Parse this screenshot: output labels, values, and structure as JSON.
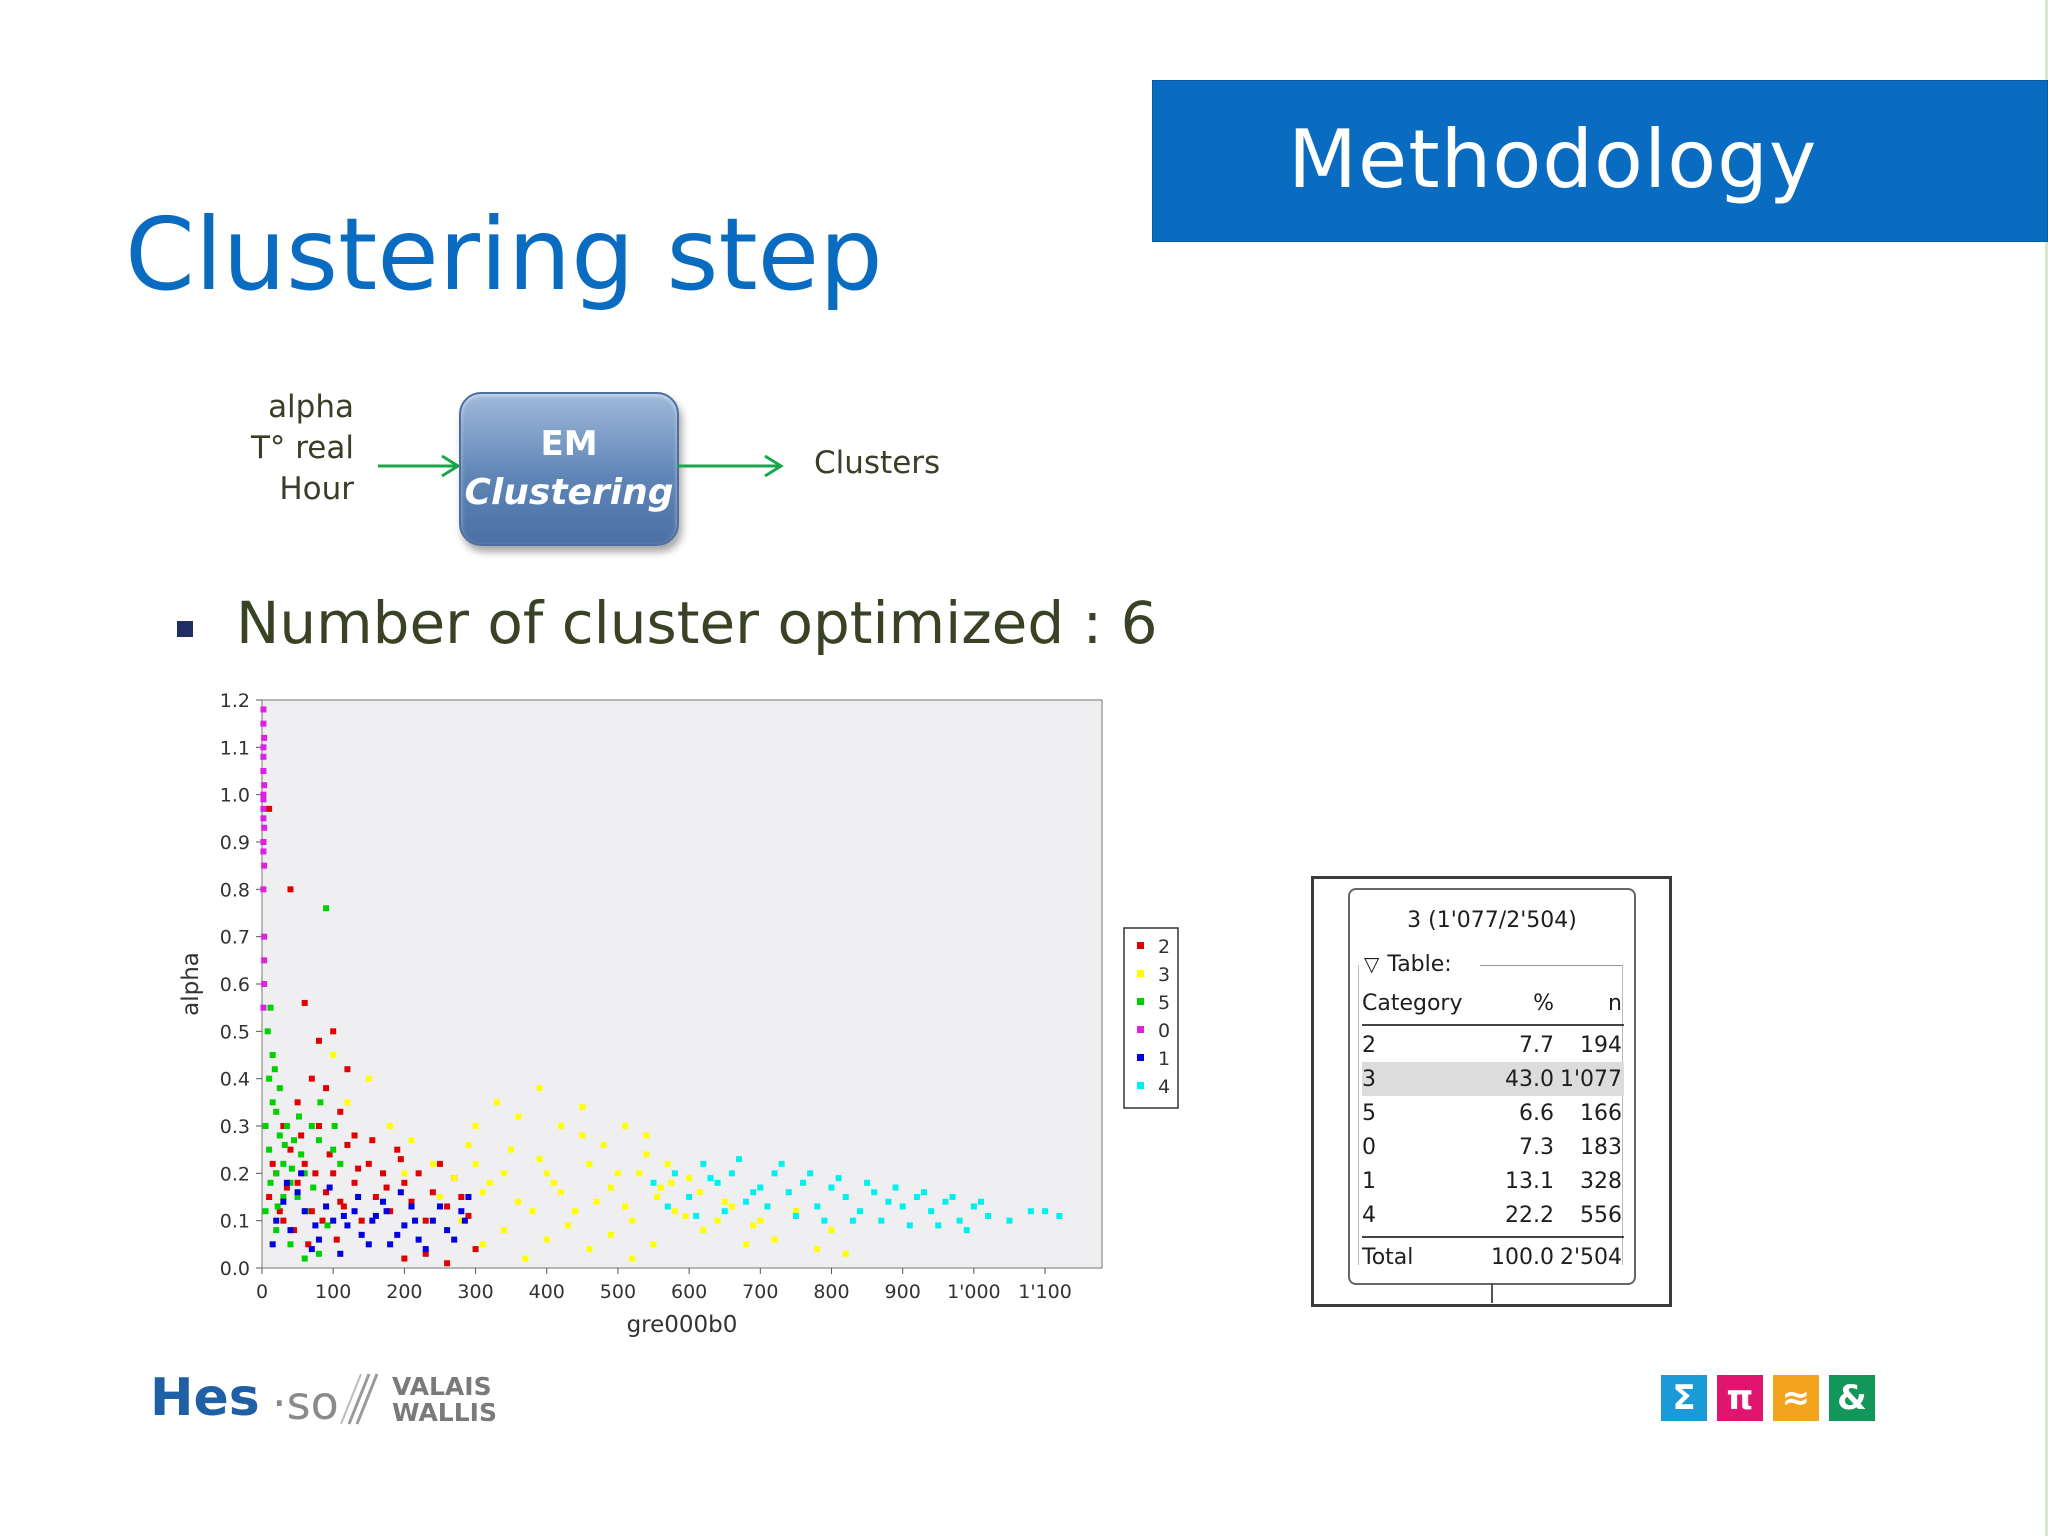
{
  "header": {
    "section": "Methodology"
  },
  "slide": {
    "title": "Clustering step"
  },
  "diagram": {
    "inputs": [
      "alpha",
      "T° real",
      "Hour"
    ],
    "box_line1": "EM",
    "box_line2": "Clustering",
    "output": "Clusters",
    "arrow_color": "#1aa64a"
  },
  "bullet": {
    "text": "Number of cluster optimized : 6"
  },
  "chart_data": {
    "type": "scatter",
    "xlabel": "gre000b0",
    "ylabel": "alpha",
    "xlim": [
      0,
      1180
    ],
    "ylim": [
      0,
      1.2
    ],
    "x_ticks": [
      "0",
      "100",
      "200",
      "300",
      "400",
      "500",
      "600",
      "700",
      "800",
      "900",
      "1'000",
      "1'100"
    ],
    "x_tick_values": [
      0,
      100,
      200,
      300,
      400,
      500,
      600,
      700,
      800,
      900,
      1000,
      1100
    ],
    "y_ticks": [
      "0.0",
      "0.1",
      "0.2",
      "0.3",
      "0.4",
      "0.5",
      "0.6",
      "0.7",
      "0.8",
      "0.9",
      "1.0",
      "1.1",
      "1.2"
    ],
    "y_tick_values": [
      0,
      0.1,
      0.2,
      0.3,
      0.4,
      0.5,
      0.6,
      0.7,
      0.8,
      0.9,
      1.0,
      1.1,
      1.2
    ],
    "grid": false,
    "legend_position": "right",
    "series": [
      {
        "name": "2",
        "color": "#e00000",
        "points": [
          [
            10,
            0.15
          ],
          [
            20,
            0.2
          ],
          [
            30,
            0.1
          ],
          [
            40,
            0.25
          ],
          [
            50,
            0.18
          ],
          [
            60,
            0.22
          ],
          [
            70,
            0.12
          ],
          [
            80,
            0.3
          ],
          [
            90,
            0.16
          ],
          [
            100,
            0.2
          ],
          [
            110,
            0.14
          ],
          [
            120,
            0.26
          ],
          [
            130,
            0.18
          ],
          [
            140,
            0.1
          ],
          [
            150,
            0.22
          ],
          [
            160,
            0.15
          ],
          [
            170,
            0.2
          ],
          [
            180,
            0.12
          ],
          [
            190,
            0.25
          ],
          [
            200,
            0.18
          ],
          [
            210,
            0.14
          ],
          [
            220,
            0.2
          ],
          [
            230,
            0.1
          ],
          [
            240,
            0.16
          ],
          [
            250,
            0.22
          ],
          [
            260,
            0.13
          ],
          [
            270,
            0.19
          ],
          [
            280,
            0.15
          ],
          [
            290,
            0.11
          ],
          [
            30,
            0.3
          ],
          [
            50,
            0.35
          ],
          [
            70,
            0.4
          ],
          [
            90,
            0.38
          ],
          [
            110,
            0.33
          ],
          [
            130,
            0.28
          ],
          [
            25,
            0.12
          ],
          [
            45,
            0.08
          ],
          [
            65,
            0.05
          ],
          [
            85,
            0.1
          ],
          [
            105,
            0.06
          ],
          [
            200,
            0.02
          ],
          [
            230,
            0.03
          ],
          [
            260,
            0.01
          ],
          [
            300,
            0.04
          ],
          [
            40,
            0.8
          ],
          [
            10,
            0.97
          ],
          [
            60,
            0.56
          ],
          [
            80,
            0.48
          ],
          [
            100,
            0.5
          ],
          [
            120,
            0.42
          ],
          [
            15,
            0.22
          ],
          [
            35,
            0.17
          ],
          [
            55,
            0.28
          ],
          [
            75,
            0.2
          ],
          [
            95,
            0.24
          ],
          [
            115,
            0.13
          ],
          [
            135,
            0.21
          ],
          [
            155,
            0.27
          ],
          [
            175,
            0.17
          ],
          [
            195,
            0.23
          ]
        ]
      },
      {
        "name": "3",
        "color": "#ffff00",
        "points": [
          [
            200,
            0.2
          ],
          [
            250,
            0.15
          ],
          [
            300,
            0.22
          ],
          [
            320,
            0.18
          ],
          [
            350,
            0.25
          ],
          [
            380,
            0.12
          ],
          [
            400,
            0.2
          ],
          [
            420,
            0.16
          ],
          [
            450,
            0.28
          ],
          [
            470,
            0.14
          ],
          [
            500,
            0.2
          ],
          [
            520,
            0.1
          ],
          [
            540,
            0.24
          ],
          [
            560,
            0.17
          ],
          [
            580,
            0.12
          ],
          [
            600,
            0.19
          ],
          [
            620,
            0.08
          ],
          [
            650,
            0.14
          ],
          [
            680,
            0.05
          ],
          [
            700,
            0.1
          ],
          [
            720,
            0.06
          ],
          [
            750,
            0.12
          ],
          [
            780,
            0.04
          ],
          [
            800,
            0.08
          ],
          [
            820,
            0.03
          ],
          [
            300,
            0.3
          ],
          [
            330,
            0.35
          ],
          [
            360,
            0.32
          ],
          [
            390,
            0.38
          ],
          [
            420,
            0.3
          ],
          [
            450,
            0.34
          ],
          [
            480,
            0.26
          ],
          [
            510,
            0.3
          ],
          [
            540,
            0.28
          ],
          [
            570,
            0.22
          ],
          [
            280,
            0.1
          ],
          [
            310,
            0.05
          ],
          [
            340,
            0.08
          ],
          [
            370,
            0.02
          ],
          [
            400,
            0.06
          ],
          [
            430,
            0.09
          ],
          [
            460,
            0.04
          ],
          [
            490,
            0.07
          ],
          [
            520,
            0.02
          ],
          [
            550,
            0.05
          ],
          [
            100,
            0.45
          ],
          [
            120,
            0.35
          ],
          [
            150,
            0.4
          ],
          [
            180,
            0.3
          ],
          [
            210,
            0.27
          ],
          [
            240,
            0.22
          ],
          [
            270,
            0.19
          ],
          [
            290,
            0.26
          ],
          [
            310,
            0.16
          ],
          [
            340,
            0.2
          ],
          [
            360,
            0.14
          ],
          [
            390,
            0.23
          ],
          [
            410,
            0.18
          ],
          [
            440,
            0.12
          ],
          [
            460,
            0.22
          ],
          [
            490,
            0.17
          ],
          [
            510,
            0.13
          ],
          [
            530,
            0.2
          ],
          [
            555,
            0.15
          ],
          [
            575,
            0.18
          ],
          [
            595,
            0.11
          ],
          [
            615,
            0.16
          ],
          [
            640,
            0.1
          ],
          [
            660,
            0.13
          ],
          [
            690,
            0.09
          ]
        ]
      },
      {
        "name": "5",
        "color": "#00d000",
        "points": [
          [
            5,
            0.3
          ],
          [
            10,
            0.25
          ],
          [
            15,
            0.35
          ],
          [
            20,
            0.2
          ],
          [
            25,
            0.28
          ],
          [
            10,
            0.4
          ],
          [
            15,
            0.45
          ],
          [
            20,
            0.33
          ],
          [
            30,
            0.22
          ],
          [
            35,
            0.3
          ],
          [
            40,
            0.18
          ],
          [
            45,
            0.27
          ],
          [
            50,
            0.15
          ],
          [
            55,
            0.24
          ],
          [
            60,
            0.2
          ],
          [
            8,
            0.5
          ],
          [
            12,
            0.55
          ],
          [
            18,
            0.42
          ],
          [
            25,
            0.38
          ],
          [
            30,
            0.15
          ],
          [
            90,
            0.76
          ],
          [
            70,
            0.3
          ],
          [
            80,
            0.27
          ],
          [
            100,
            0.25
          ],
          [
            110,
            0.22
          ],
          [
            20,
            0.08
          ],
          [
            40,
            0.05
          ],
          [
            60,
            0.02
          ],
          [
            80,
            0.03
          ],
          [
            5,
            0.12
          ],
          [
            12,
            0.18
          ],
          [
            22,
            0.13
          ],
          [
            32,
            0.26
          ],
          [
            42,
            0.21
          ],
          [
            52,
            0.32
          ],
          [
            62,
            0.12
          ],
          [
            72,
            0.17
          ],
          [
            82,
            0.35
          ],
          [
            92,
            0.09
          ],
          [
            102,
            0.3
          ]
        ]
      },
      {
        "name": "0",
        "color": "#e020e0",
        "points": [
          [
            2,
            1.15
          ],
          [
            2,
            1.1
          ],
          [
            2,
            1.05
          ],
          [
            2,
            1.0
          ],
          [
            2,
            0.97
          ],
          [
            2,
            0.95
          ],
          [
            2,
            0.9
          ],
          [
            3,
            0.85
          ],
          [
            3,
            0.65
          ],
          [
            3,
            0.6
          ],
          [
            2,
            1.18
          ],
          [
            3,
            1.12
          ],
          [
            2,
            1.08
          ],
          [
            3,
            1.02
          ],
          [
            2,
            0.99
          ],
          [
            3,
            0.93
          ],
          [
            2,
            0.88
          ],
          [
            2,
            0.8
          ],
          [
            3,
            0.7
          ],
          [
            2,
            0.55
          ]
        ]
      },
      {
        "name": "1",
        "color": "#0000e0",
        "points": [
          [
            20,
            0.1
          ],
          [
            40,
            0.08
          ],
          [
            60,
            0.12
          ],
          [
            80,
            0.06
          ],
          [
            100,
            0.1
          ],
          [
            120,
            0.09
          ],
          [
            140,
            0.07
          ],
          [
            160,
            0.11
          ],
          [
            180,
            0.05
          ],
          [
            200,
            0.09
          ],
          [
            220,
            0.06
          ],
          [
            240,
            0.1
          ],
          [
            260,
            0.08
          ],
          [
            280,
            0.12
          ],
          [
            290,
            0.15
          ],
          [
            30,
            0.14
          ],
          [
            50,
            0.16
          ],
          [
            70,
            0.04
          ],
          [
            90,
            0.13
          ],
          [
            110,
            0.03
          ],
          [
            130,
            0.12
          ],
          [
            150,
            0.05
          ],
          [
            170,
            0.14
          ],
          [
            190,
            0.07
          ],
          [
            210,
            0.13
          ],
          [
            230,
            0.04
          ],
          [
            250,
            0.13
          ],
          [
            270,
            0.06
          ],
          [
            285,
            0.1
          ],
          [
            15,
            0.05
          ],
          [
            35,
            0.18
          ],
          [
            55,
            0.2
          ],
          [
            75,
            0.09
          ],
          [
            95,
            0.17
          ],
          [
            115,
            0.11
          ],
          [
            135,
            0.15
          ],
          [
            155,
            0.1
          ],
          [
            175,
            0.12
          ],
          [
            195,
            0.16
          ],
          [
            215,
            0.1
          ]
        ]
      },
      {
        "name": "4",
        "color": "#00f0f0",
        "points": [
          [
            580,
            0.2
          ],
          [
            600,
            0.15
          ],
          [
            620,
            0.22
          ],
          [
            640,
            0.18
          ],
          [
            660,
            0.2
          ],
          [
            680,
            0.14
          ],
          [
            700,
            0.17
          ],
          [
            720,
            0.2
          ],
          [
            740,
            0.16
          ],
          [
            760,
            0.18
          ],
          [
            780,
            0.13
          ],
          [
            800,
            0.17
          ],
          [
            820,
            0.15
          ],
          [
            840,
            0.12
          ],
          [
            860,
            0.16
          ],
          [
            880,
            0.14
          ],
          [
            900,
            0.13
          ],
          [
            920,
            0.15
          ],
          [
            940,
            0.12
          ],
          [
            960,
            0.14
          ],
          [
            980,
            0.1
          ],
          [
            1000,
            0.13
          ],
          [
            1020,
            0.11
          ],
          [
            1050,
            0.1
          ],
          [
            1080,
            0.12
          ],
          [
            1100,
            0.12
          ],
          [
            1120,
            0.11
          ],
          [
            550,
            0.18
          ],
          [
            570,
            0.13
          ],
          [
            610,
            0.11
          ],
          [
            630,
            0.19
          ],
          [
            650,
            0.12
          ],
          [
            670,
            0.23
          ],
          [
            690,
            0.16
          ],
          [
            710,
            0.13
          ],
          [
            730,
            0.22
          ],
          [
            750,
            0.11
          ],
          [
            770,
            0.2
          ],
          [
            790,
            0.1
          ],
          [
            810,
            0.19
          ],
          [
            830,
            0.1
          ],
          [
            850,
            0.18
          ],
          [
            870,
            0.1
          ],
          [
            890,
            0.17
          ],
          [
            910,
            0.09
          ],
          [
            930,
            0.16
          ],
          [
            950,
            0.09
          ],
          [
            970,
            0.15
          ],
          [
            990,
            0.08
          ],
          [
            1010,
            0.14
          ]
        ]
      }
    ]
  },
  "node_table": {
    "node_header": "3 (1'077/2'504)",
    "caption": "Table:",
    "columns": [
      "Category",
      "%",
      "n"
    ],
    "rows": [
      {
        "category": "2",
        "pct": "7.7",
        "n": "194",
        "highlighted": false
      },
      {
        "category": "3",
        "pct": "43.0",
        "n": "1'077",
        "highlighted": true
      },
      {
        "category": "5",
        "pct": "6.6",
        "n": "166",
        "highlighted": false
      },
      {
        "category": "0",
        "pct": "7.3",
        "n": "183",
        "highlighted": false
      },
      {
        "category": "1",
        "pct": "13.1",
        "n": "328",
        "highlighted": false
      },
      {
        "category": "4",
        "pct": "22.2",
        "n": "556",
        "highlighted": false
      }
    ],
    "total": {
      "category": "Total",
      "pct": "100.0",
      "n": "2'504"
    }
  },
  "footer": {
    "logo_main": "Hes",
    "logo_so": "·so",
    "logo_region_1": "VALAIS",
    "logo_region_2": "WALLIS",
    "symbols": [
      {
        "char": "Σ",
        "color": "#1a9bd7"
      },
      {
        "char": "π",
        "color": "#e0156f"
      },
      {
        "char": "≈",
        "color": "#f2a41c"
      },
      {
        "char": "&",
        "color": "#12965a"
      }
    ]
  }
}
